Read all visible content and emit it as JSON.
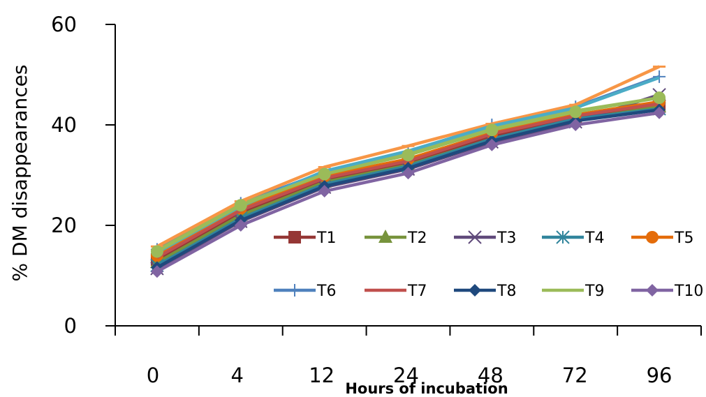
{
  "chart_data": {
    "type": "line",
    "title": "",
    "xlabel": "Hours of incubation",
    "ylabel": "% DM disappearances",
    "categories": [
      "0",
      "4",
      "12",
      "24",
      "48",
      "72",
      "96"
    ],
    "ylim": [
      0,
      60
    ],
    "yticks": [
      0,
      20,
      40,
      60
    ],
    "grid": false,
    "legend_position": "inside-bottom-right",
    "series": [
      {
        "name": "T1",
        "color": "#953735",
        "marker": "square",
        "values": [
          13.2,
          22.6,
          29.0,
          32.4,
          37.8,
          41.4,
          44.0
        ]
      },
      {
        "name": "T2",
        "color": "#77933C",
        "marker": "triangle",
        "values": [
          12.6,
          22.0,
          28.6,
          32.0,
          37.2,
          41.0,
          43.6
        ]
      },
      {
        "name": "T3",
        "color": "#604A7B",
        "marker": "x",
        "values": [
          11.4,
          20.8,
          27.6,
          31.2,
          36.6,
          40.6,
          46.0
        ]
      },
      {
        "name": "T4",
        "color": "#31859C",
        "marker": "asterisk",
        "values": [
          12.0,
          21.4,
          28.2,
          31.8,
          37.2,
          41.2,
          43.2
        ]
      },
      {
        "name": "T5",
        "color": "#E46C0A",
        "marker": "circle",
        "values": [
          14.0,
          23.4,
          29.8,
          33.2,
          38.4,
          42.0,
          44.6
        ]
      },
      {
        "name": "T6",
        "color": "#4F81BD",
        "marker": "plus",
        "values": [
          15.2,
          24.4,
          30.6,
          34.6,
          40.0,
          43.6,
          49.6
        ]
      },
      {
        "name": "T7",
        "color": "#C0504D",
        "marker": "none",
        "values": [
          13.6,
          23.0,
          29.4,
          32.8,
          38.2,
          41.8,
          44.2
        ]
      },
      {
        "name": "T8",
        "color": "#1F497D",
        "marker": "diamond",
        "values": [
          11.6,
          21.0,
          27.8,
          31.4,
          36.8,
          40.8,
          43.0
        ]
      },
      {
        "name": "T9",
        "color": "#9BBB59",
        "marker": "none",
        "values": [
          15.0,
          24.2,
          30.4,
          34.2,
          39.2,
          42.8,
          45.4
        ]
      },
      {
        "name": "T10",
        "color": "#8064A2",
        "marker": "diamond",
        "values": [
          10.8,
          20.0,
          26.8,
          30.4,
          36.0,
          40.0,
          42.4
        ]
      },
      {
        "name": "",
        "color": "#F79646",
        "marker": "dash",
        "values": [
          15.8,
          24.8,
          31.6,
          35.8,
          40.2,
          44.0,
          51.6
        ]
      },
      {
        "name": "",
        "color": "#4BACC6",
        "marker": "none",
        "values": [
          14.6,
          23.8,
          30.8,
          34.8,
          39.8,
          43.4,
          49.4
        ]
      },
      {
        "name": "",
        "color": "#9BBB59",
        "marker": "circle",
        "values": [
          14.8,
          24.0,
          30.2,
          34.0,
          39.0,
          42.6,
          45.4
        ]
      }
    ]
  }
}
